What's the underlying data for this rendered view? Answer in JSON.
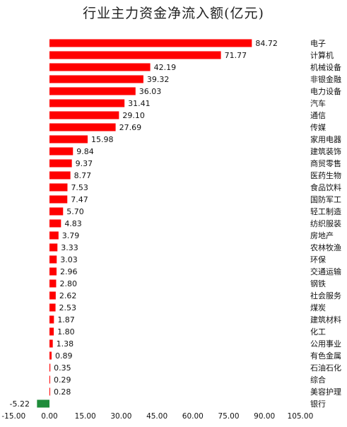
{
  "chart_data": {
    "type": "bar",
    "orientation": "horizontal",
    "title": "行业主力资金净流入额(亿元)",
    "categories": [
      "电子",
      "计算机",
      "机械设备",
      "非银金融",
      "电力设备",
      "汽车",
      "通信",
      "传媒",
      "家用电器",
      "建筑装饰",
      "商贸零售",
      "医药生物",
      "食品饮料",
      "国防军工",
      "轻工制造",
      "纺织服装",
      "房地产",
      "农林牧渔",
      "环保",
      "交通运输",
      "钢铁",
      "社会服务",
      "煤炭",
      "建筑材料",
      "化工",
      "公用事业",
      "有色金属",
      "石油石化",
      "综合",
      "美容护理",
      "银行"
    ],
    "categories_displayed": [
      "电子",
      "计算机",
      "机械设备",
      "非银金融",
      "电力设备",
      "汽车",
      "通信",
      "传媒",
      "家用电器",
      "建筑装饰",
      "商贸零售",
      "医药生物",
      "食品饮料",
      "国防军工",
      "轻工制造",
      "纺织服装",
      "房地产",
      "农林牧渔",
      "环保",
      "交通运输",
      "钢铁",
      "社会服务",
      "煤炭",
      "建筑材料",
      "化工",
      "公用事业",
      "有色金属",
      "石油石化",
      "综合",
      "美容护理",
      "银行"
    ],
    "values": [
      84.72,
      71.77,
      42.19,
      39.32,
      36.03,
      31.41,
      29.1,
      27.69,
      15.98,
      9.84,
      9.37,
      8.77,
      7.53,
      7.47,
      5.7,
      4.83,
      3.79,
      3.33,
      3.03,
      2.96,
      2.8,
      2.62,
      2.53,
      1.87,
      1.8,
      1.38,
      0.89,
      0.35,
      0.29,
      0.28,
      -5.22
    ],
    "value_labels": [
      "84.72",
      "71.77",
      "42.19",
      "39.32",
      "36.03",
      "31.41",
      "29.10",
      "27.69",
      "15.98",
      "9.84",
      "9.37",
      "8.77",
      "7.53",
      "7.47",
      "5.70",
      "4.83",
      "3.79",
      "3.33",
      "3.03",
      "2.96",
      "2.80",
      "2.62",
      "2.53",
      "1.87",
      "1.80",
      "1.38",
      "0.89",
      "0.35",
      "0.29",
      "0.28",
      "-5.22"
    ],
    "xlim": [
      -15,
      105
    ],
    "x_ticks": [
      "-15.00",
      "0.00",
      "15.00",
      "30.00",
      "45.00",
      "60.00",
      "75.00",
      "90.00",
      "105.00"
    ],
    "x_tick_values": [
      -15,
      0,
      15,
      30,
      45,
      60,
      75,
      90,
      105
    ],
    "grid": false,
    "colors": {
      "positive": "#ff0000",
      "negative": "#1e8c3a",
      "text": "#111111"
    }
  }
}
